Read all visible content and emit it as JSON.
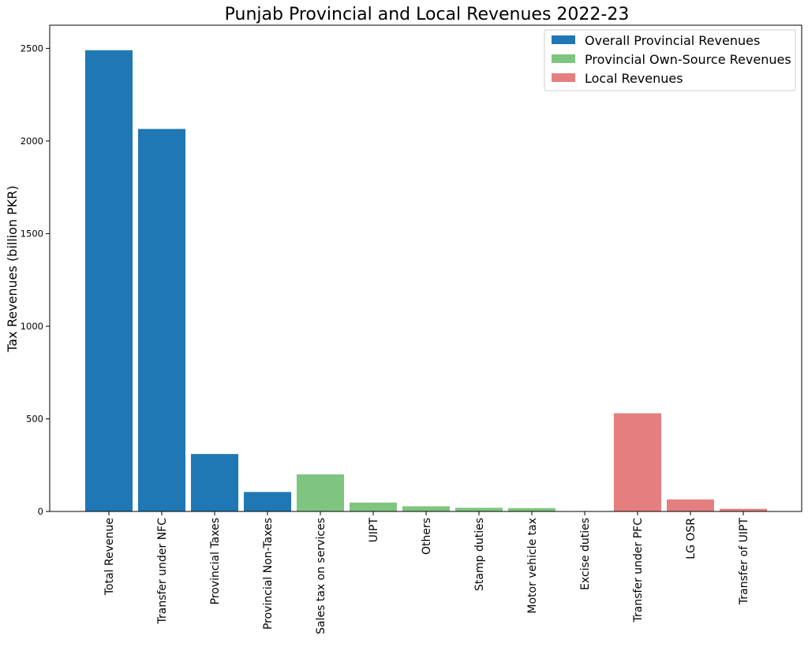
{
  "chart_data": {
    "type": "bar",
    "title": "Punjab Provincial and Local Revenues 2022-23",
    "xlabel": "",
    "ylabel": "Tax Revenues (billion PKR)",
    "ylim": [
      0,
      2625
    ],
    "yticks": [
      0,
      500,
      1000,
      1500,
      2000,
      2500
    ],
    "grid": false,
    "legend_position": "top-right",
    "categories": [
      "Total Revenue",
      "Transfer under NFC",
      "Provincial Taxes",
      "Provincial Non-Taxes",
      "Sales tax on services",
      "UIPT",
      "Others",
      "Stamp duties",
      "Motor vehicle tax",
      "Excise duties",
      "Transfer under PFC",
      "LG OSR",
      "Transfer of UIPT"
    ],
    "values": [
      2490,
      2065,
      310,
      105,
      200,
      48,
      28,
      20,
      18,
      2,
      530,
      65,
      14
    ],
    "groups": [
      0,
      0,
      0,
      0,
      1,
      1,
      1,
      1,
      1,
      1,
      2,
      2,
      2
    ],
    "series": [
      {
        "name": "Overall Provincial Revenues",
        "color": "#1f77b4"
      },
      {
        "name": "Provincial Own-Source Revenues",
        "color": "#7fc57f"
      },
      {
        "name": "Local Revenues",
        "color": "#e57f7f"
      }
    ]
  }
}
